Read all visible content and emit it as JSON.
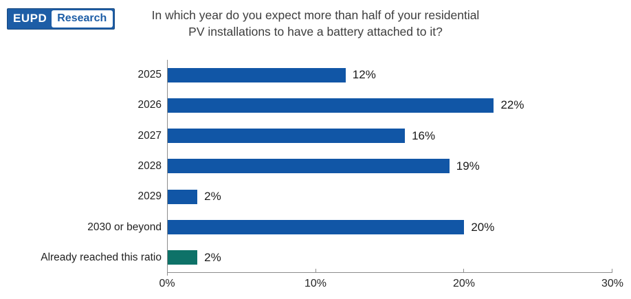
{
  "logo": {
    "primary": "EUPD",
    "secondary": "Research"
  },
  "title": {
    "line1": "In which year do you expect more than half of your residential",
    "line2": "PV installations to have a battery attached to it?"
  },
  "chart_data": {
    "type": "bar",
    "orientation": "horizontal",
    "title": "In which year do you expect more than half of your residential PV installations to have a battery attached to it?",
    "categories": [
      "2025",
      "2026",
      "2027",
      "2028",
      "2029",
      "2030 or beyond",
      "Already reached this ratio"
    ],
    "values": [
      12,
      22,
      16,
      19,
      2,
      20,
      2
    ],
    "value_labels": [
      "12%",
      "22%",
      "16%",
      "19%",
      "2%",
      "20%",
      "2%"
    ],
    "bar_colors": [
      "#1156a6",
      "#1156a6",
      "#1156a6",
      "#1156a6",
      "#1156a6",
      "#1156a6",
      "#0e7268"
    ],
    "xlabel": "",
    "ylabel": "",
    "xlim": [
      0,
      30
    ],
    "x_ticks": [
      {
        "label": "0%",
        "value": 0
      },
      {
        "label": "10%",
        "value": 10
      },
      {
        "label": "20%",
        "value": 20
      },
      {
        "label": "30%",
        "value": 30
      }
    ],
    "grid": false,
    "legend": false
  },
  "colors": {
    "bar_blue": "#1156a6",
    "bar_teal": "#0e7268",
    "axis": "#8c8c8c",
    "logo_blue": "#1d5da6",
    "title_text": "#3d3d3d"
  }
}
